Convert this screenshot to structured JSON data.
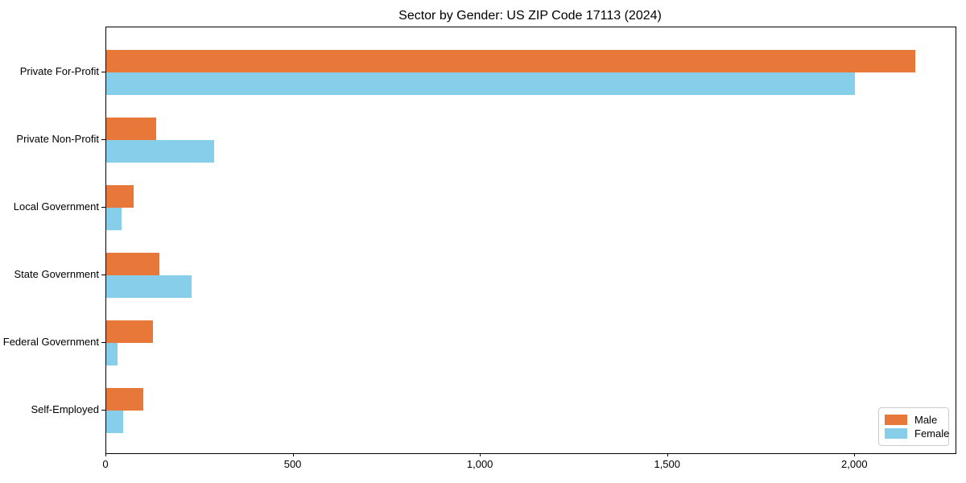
{
  "title": "Sector by Gender: US ZIP Code 17113 (2024)",
  "chart_data": {
    "type": "bar",
    "orientation": "horizontal",
    "title": "Sector by Gender: US ZIP Code 17113 (2024)",
    "categories": [
      "Private For-Profit",
      "Private Non-Profit",
      "Local Government",
      "State Government",
      "Federal Government",
      "Self-Employed"
    ],
    "series": [
      {
        "name": "Male",
        "color": "#e8783a",
        "values": [
          2160,
          133,
          73,
          142,
          125,
          99
        ]
      },
      {
        "name": "Female",
        "color": "#87ceeb",
        "values": [
          2000,
          288,
          41,
          228,
          30,
          45
        ]
      }
    ],
    "xlim": [
      0,
      2268
    ],
    "xticks": [
      0,
      500,
      1000,
      1500,
      2000
    ],
    "xtick_labels": [
      "0",
      "500",
      "1,000",
      "1,500",
      "2,000"
    ],
    "xlabel": "",
    "ylabel": "",
    "grid": false,
    "legend_position": "lower right",
    "background_color": "#ffffff",
    "axis_color": "#000000"
  }
}
